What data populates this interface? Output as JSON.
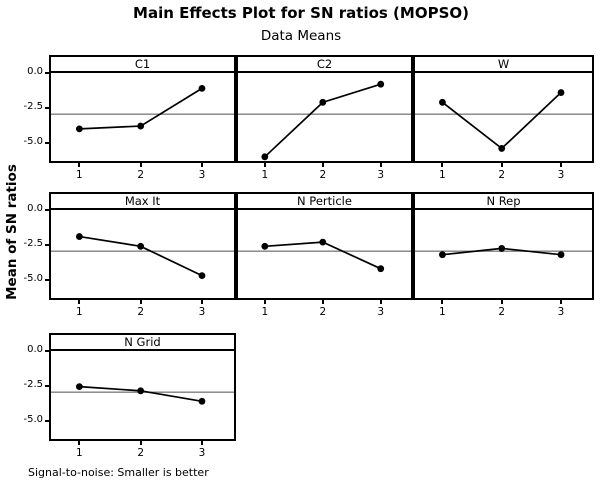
{
  "chart_data": {
    "type": "line",
    "title": "Main Effects Plot for SN ratios (MOPSO)",
    "subtitle": "Data Means",
    "ylabel": "Mean of SN ratios",
    "footnote": "Signal-to-noise: Smaller is better",
    "x_categories": [
      "1",
      "2",
      "3"
    ],
    "ytick_labels": [
      "0.0",
      "-2.5",
      "-5.0"
    ],
    "yticks": [
      0,
      -2.5,
      -5
    ],
    "ylim": [
      -6.3,
      0
    ],
    "reference_mean": -2.95,
    "grid": "off",
    "legend_position": "none",
    "marker": "filled-circle",
    "panels": [
      {
        "factor": "C1",
        "means": [
          -4.0,
          -3.8,
          -1.1
        ]
      },
      {
        "factor": "C2",
        "means": [
          -6.0,
          -2.1,
          -0.8
        ]
      },
      {
        "factor": "W",
        "means": [
          -2.1,
          -5.4,
          -1.4
        ]
      },
      {
        "factor": "Max It",
        "means": [
          -1.9,
          -2.6,
          -4.7
        ]
      },
      {
        "factor": "N Perticle",
        "means": [
          -2.6,
          -2.3,
          -4.2
        ]
      },
      {
        "factor": "N Rep",
        "means": [
          -3.2,
          -2.75,
          -3.2
        ]
      },
      {
        "factor": "N Grid",
        "means": [
          -2.55,
          -2.85,
          -3.6
        ]
      }
    ],
    "colors": {
      "line": "#000000",
      "marker": "#000000",
      "reference_line": "#7f7f7f",
      "panel_border": "#000000",
      "background": "#ffffff",
      "text": "#000000"
    }
  }
}
